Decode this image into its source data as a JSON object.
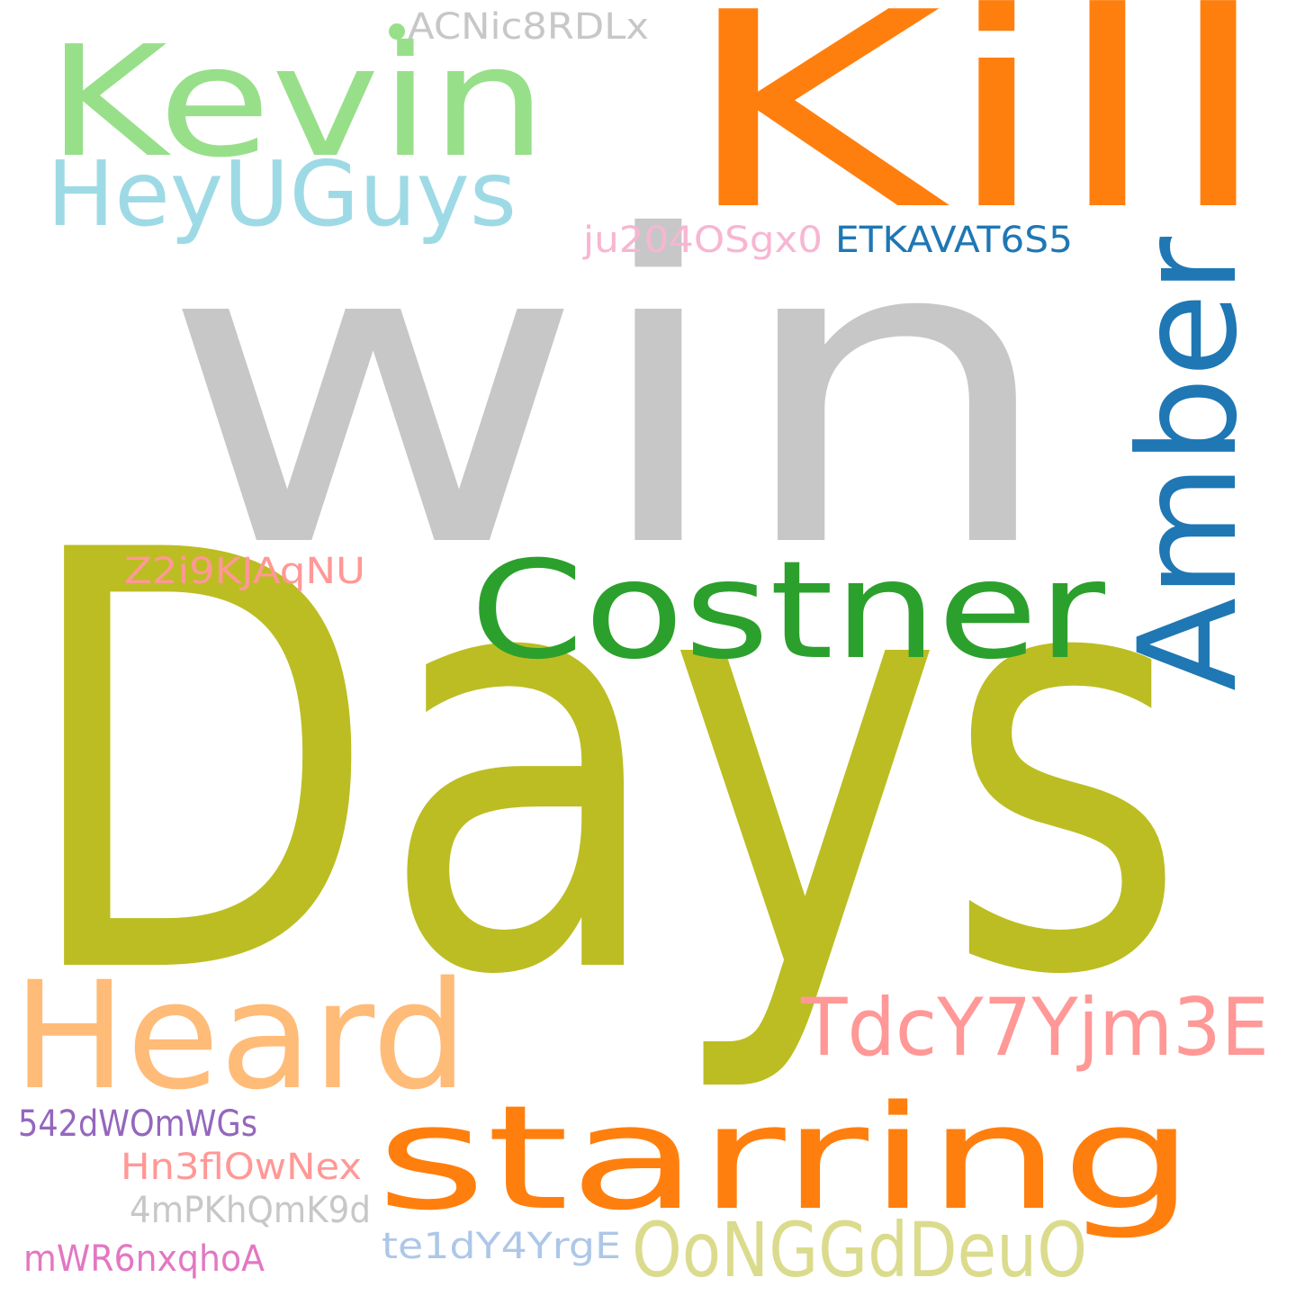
{
  "words": [
    {
      "text": "Days",
      "color": "#bcbd22"
    },
    {
      "text": "win",
      "color": "#c7c7c7"
    },
    {
      "text": "Kill",
      "color": "#ff7f0e"
    },
    {
      "text": "Kevin",
      "color": "#98df8a"
    },
    {
      "text": "Costner",
      "color": "#2ca02c"
    },
    {
      "text": "Amber",
      "color": "#1f77b4"
    },
    {
      "text": "Heard",
      "color": "#ffbb78"
    },
    {
      "text": "starring",
      "color": "#ff7f0e"
    },
    {
      "text": "HeyUGuys",
      "color": "#9edae5"
    },
    {
      "text": "TdcY7Yjm3E",
      "color": "#ff9896"
    },
    {
      "text": "OoNGGdDeuO",
      "color": "#dbdb8d"
    },
    {
      "text": "ACNic8RDLx",
      "color": "#c7c7c7"
    },
    {
      "text": "ju204OSgx0",
      "color": "#f7b6d2"
    },
    {
      "text": "ETKAVAT6S5",
      "color": "#1f77b4"
    },
    {
      "text": "Z2i9KJAqNU",
      "color": "#ff9896"
    },
    {
      "text": "542dWOmWGs",
      "color": "#9467bd"
    },
    {
      "text": "Hn3flOwNex",
      "color": "#ff9896"
    },
    {
      "text": "4mPKhQmK9d",
      "color": "#c7c7c7"
    },
    {
      "text": "te1dY4YrgE",
      "color": "#aec7e8"
    },
    {
      "text": "mWR6nxqhoA",
      "color": "#e377c2"
    }
  ],
  "dot_color": "#98df8a",
  "background": "#ffffff"
}
